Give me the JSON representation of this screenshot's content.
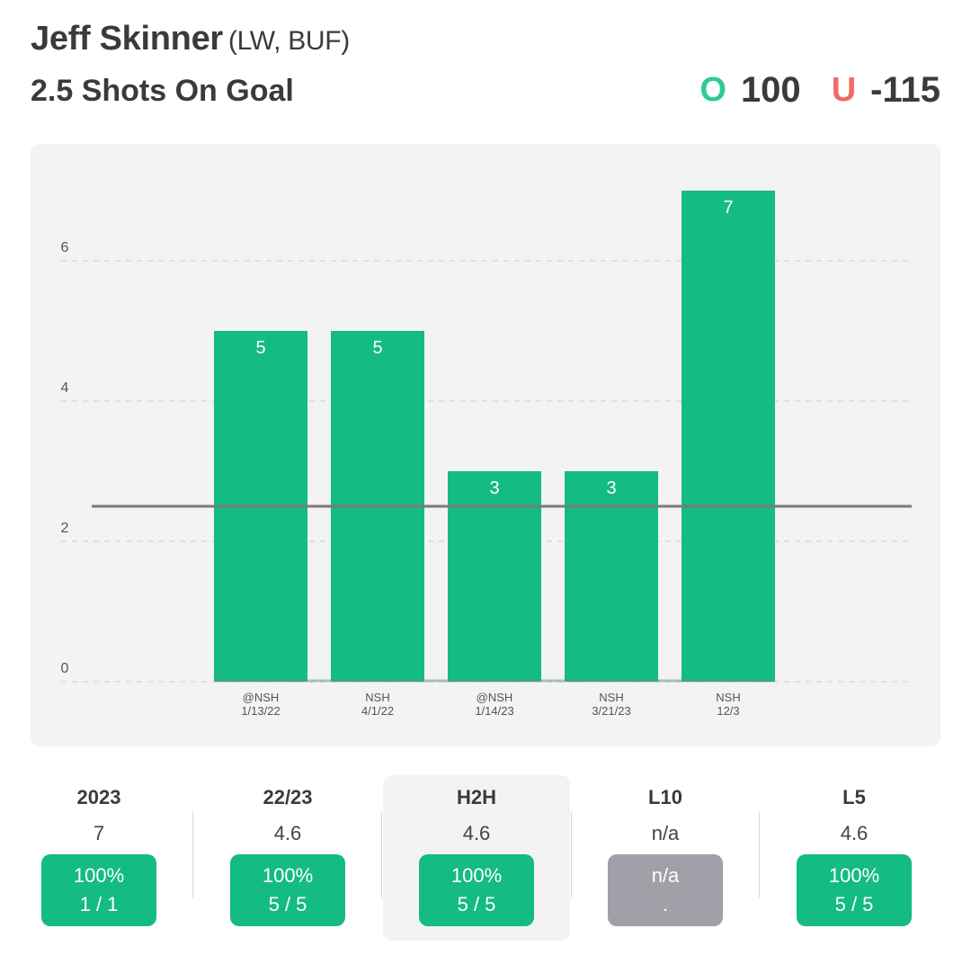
{
  "header": {
    "player_name": "Jeff Skinner",
    "player_meta": "(LW, BUF)",
    "prop_title": "2.5 Shots On Goal",
    "over_letter": "O",
    "over_odds": "100",
    "under_letter": "U",
    "under_odds": "-115",
    "colors": {
      "over": "#2ecc91",
      "under": "#ef6b6b"
    }
  },
  "chart_data": {
    "type": "bar",
    "title": "",
    "xlabel": "",
    "ylabel": "",
    "categories": [
      "@NSH",
      "NSH",
      "@NSH",
      "NSH",
      "NSH"
    ],
    "dates": [
      "1/13/22",
      "4/1/22",
      "1/14/23",
      "3/21/23",
      "12/3"
    ],
    "values": [
      5,
      5,
      3,
      3,
      7
    ],
    "line_value": 2.5,
    "ylim": [
      0,
      7
    ],
    "yticks": [
      0,
      2,
      4,
      6
    ],
    "grid": true,
    "bar_color": "#14bb82",
    "line_color": "#7a7a7a"
  },
  "stats": [
    {
      "label": "2023",
      "avg": "7",
      "pct": "100%",
      "record": "1 / 1",
      "na": false,
      "highlight": false
    },
    {
      "label": "22/23",
      "avg": "4.6",
      "pct": "100%",
      "record": "5 / 5",
      "na": false,
      "highlight": false
    },
    {
      "label": "H2H",
      "avg": "4.6",
      "pct": "100%",
      "record": "5 / 5",
      "na": false,
      "highlight": true
    },
    {
      "label": "L10",
      "avg": "n/a",
      "pct": "n/a",
      "record": ".",
      "na": true,
      "highlight": false
    },
    {
      "label": "L5",
      "avg": "4.6",
      "pct": "100%",
      "record": "5 / 5",
      "na": false,
      "highlight": false
    }
  ]
}
